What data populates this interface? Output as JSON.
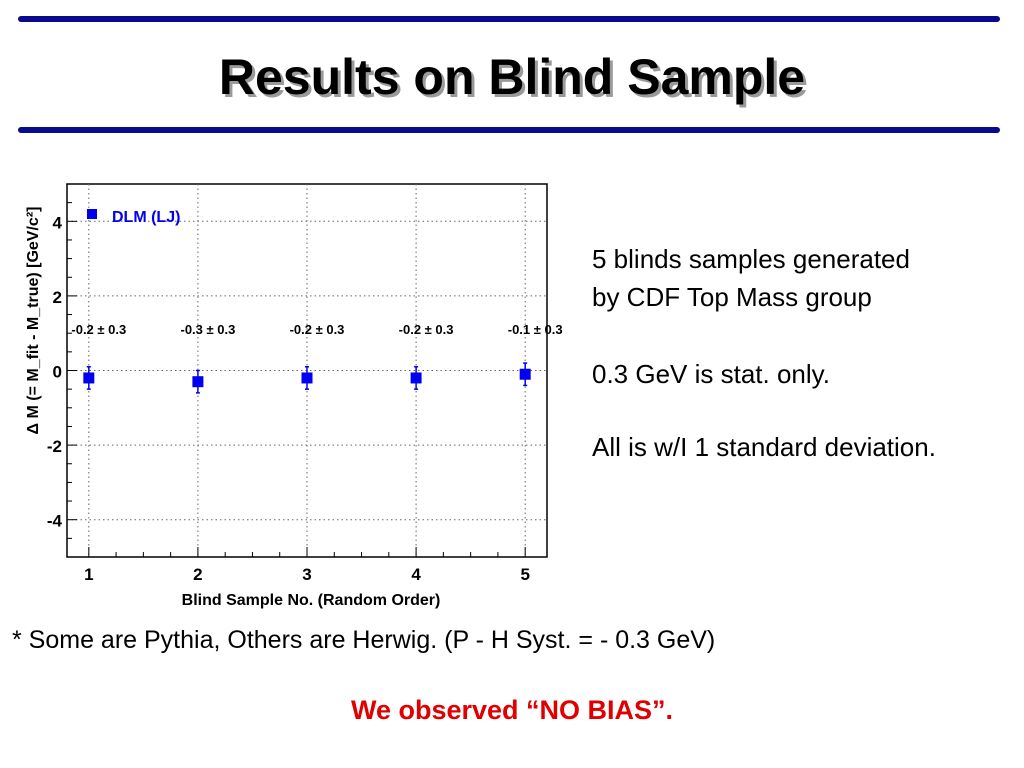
{
  "slide": {
    "title": "Results on Blind Sample",
    "notes": [
      "5 blinds samples generated",
      "by CDF Top Mass group",
      "0.3 GeV is stat. only.",
      "All is w/I 1 standard deviation."
    ],
    "footnote": "* Some are Pythia, Others are Herwig. (P - H Syst. =  - 0.3 GeV)",
    "conclusion": "We observed “NO BIAS”."
  },
  "colors": {
    "accent_bar": "#0a0a8c",
    "series": "#0000ee",
    "conclusion": "#e00000"
  },
  "chart_data": {
    "type": "scatter",
    "xlabel": "Blind Sample No. (Random Order)",
    "ylabel": "Δ M (= M_fit - M_true) [GeV/c²]",
    "xlim": [
      0.8,
      5.2
    ],
    "ylim": [
      -5,
      5
    ],
    "xticks": [
      1,
      2,
      3,
      4,
      5
    ],
    "yticks": [
      -4,
      -2,
      0,
      2,
      4
    ],
    "grid": true,
    "legend_position": "top-left",
    "series": [
      {
        "name": "DLM (LJ)",
        "marker": "square",
        "color": "#0000ee",
        "x": [
          1,
          2,
          3,
          4,
          5
        ],
        "y": [
          -0.2,
          -0.3,
          -0.2,
          -0.2,
          -0.1
        ],
        "yerr": [
          0.3,
          0.3,
          0.3,
          0.3,
          0.3
        ],
        "labels": [
          "-0.2 ± 0.3",
          "-0.3 ± 0.3",
          "-0.2 ± 0.3",
          "-0.2 ± 0.3",
          "-0.1 ± 0.3"
        ]
      }
    ]
  }
}
